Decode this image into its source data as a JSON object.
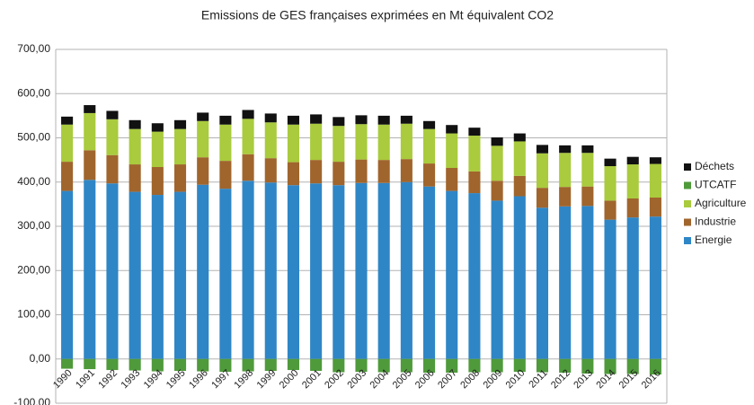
{
  "chart_data": {
    "type": "stacked-bar",
    "title": "Emissions de GES françaises exprimées en Mt équivalent CO2",
    "categories": [
      "1990",
      "1991",
      "1992",
      "1993",
      "1994",
      "1995",
      "1996",
      "1997",
      "1998",
      "1999",
      "2000",
      "2001",
      "2002",
      "2003",
      "2004",
      "2005",
      "2006",
      "2007",
      "2008",
      "2009",
      "2010",
      "2011",
      "2012",
      "2013",
      "2014",
      "2015",
      "2016"
    ],
    "series": [
      {
        "name": "Energie",
        "color": "#2f86c6",
        "values": [
          380,
          405,
          397,
          378,
          371,
          378,
          394,
          385,
          403,
          399,
          393,
          397,
          393,
          398,
          398,
          400,
          390,
          380,
          375,
          358,
          368,
          342,
          345,
          346,
          315,
          320,
          322
        ]
      },
      {
        "name": "Industrie",
        "color": "#a0652c",
        "values": [
          66,
          67,
          64,
          62,
          63,
          62,
          62,
          63,
          60,
          55,
          52,
          53,
          53,
          53,
          52,
          52,
          52,
          52,
          49,
          45,
          46,
          45,
          44,
          44,
          43,
          43,
          43
        ]
      },
      {
        "name": "Agriculture",
        "color": "#a9cb3d",
        "values": [
          84,
          84,
          81,
          80,
          80,
          80,
          82,
          82,
          80,
          81,
          85,
          82,
          81,
          80,
          80,
          80,
          78,
          78,
          81,
          79,
          78,
          78,
          77,
          76,
          78,
          77,
          76
        ]
      },
      {
        "name": "UTCATF",
        "color": "#4f9a3b",
        "values": [
          -22,
          -23,
          -25,
          -26,
          -28,
          -27,
          -28,
          -29,
          -28,
          -27,
          -25,
          -27,
          -30,
          -29,
          -30,
          -30,
          -31,
          -31,
          -30,
          -30,
          -29,
          -30,
          -31,
          -33,
          -34,
          -34,
          -35
        ]
      },
      {
        "name": "Déchets",
        "color": "#111111",
        "values": [
          18,
          18,
          19,
          20,
          19,
          20,
          19,
          20,
          20,
          20,
          20,
          21,
          20,
          20,
          20,
          18,
          18,
          19,
          18,
          19,
          18,
          19,
          17,
          17,
          17,
          17,
          15
        ]
      }
    ],
    "ylim": [
      -100,
      700
    ],
    "yticks": [
      {
        "value": -100,
        "label": "-100,00"
      },
      {
        "value": 0,
        "label": "0,00"
      },
      {
        "value": 100,
        "label": "100,00"
      },
      {
        "value": 200,
        "label": "200,00"
      },
      {
        "value": 300,
        "label": "300,00"
      },
      {
        "value": 400,
        "label": "400,00"
      },
      {
        "value": 500,
        "label": "500,00"
      },
      {
        "value": 600,
        "label": "600,00"
      },
      {
        "value": 700,
        "label": "700,00"
      }
    ],
    "grid": true,
    "legend": "right"
  }
}
